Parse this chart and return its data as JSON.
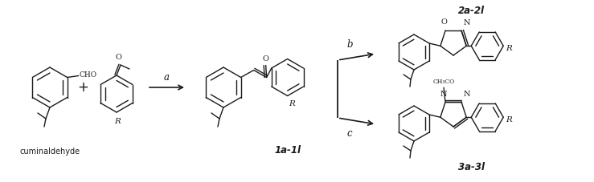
{
  "figsize": [
    7.39,
    2.27
  ],
  "dpi": 100,
  "bg_color": "#ffffff",
  "lc": "#1a1a1a",
  "lw": 1.0,
  "lw_thick": 1.3,
  "font_label": 7.5,
  "font_compound": 8.5,
  "font_reagent": 8,
  "labels": {
    "cuminaldehyde": "cuminaldehyde",
    "1a1l": "1a-1l",
    "2a2l": "2a-2l",
    "3a3l": "3a-3l"
  }
}
